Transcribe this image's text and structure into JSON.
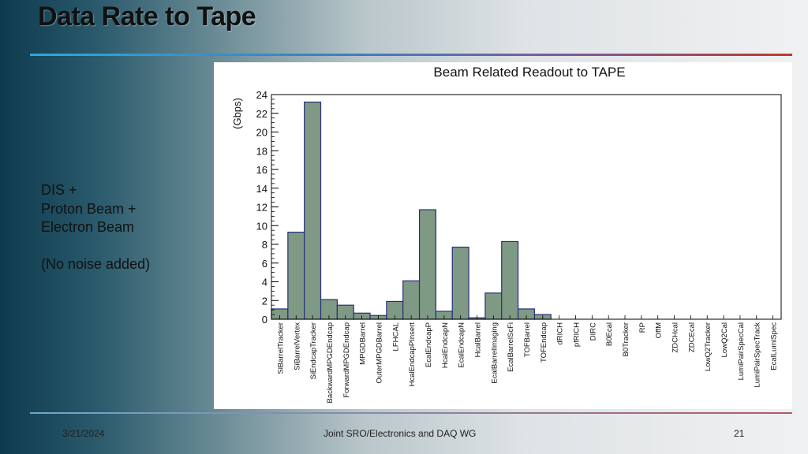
{
  "slide": {
    "title": "Data Rate to Tape",
    "side_lines": [
      "DIS +",
      "Proton Beam +",
      "Electron Beam"
    ],
    "side_note": "(No noise added)",
    "footer_date": "3/21/2024",
    "footer_center": "Joint SRO/Electronics and DAQ WG",
    "page_number": "21"
  },
  "chart_data": {
    "type": "bar",
    "title": "Beam Related Readout to TAPE",
    "ylabel": "(Gbps)",
    "xlabel": "",
    "ylim": [
      0,
      24
    ],
    "yticks": [
      0,
      2,
      4,
      6,
      8,
      10,
      12,
      14,
      16,
      18,
      20,
      22,
      24
    ],
    "grid": false,
    "bar_color": "#7f9a84",
    "edge_color": "#2b2f7a",
    "categories": [
      "SiBarrelTracker",
      "SiBarrelVertex",
      "SiEndcapTracker",
      "BackwardMPGDEndcap",
      "ForwardMPGDEndcap",
      "MPGDBarrel",
      "OuterMPGDBarrel",
      "LFHCAL",
      "HcalEndcapPInsert",
      "EcalEndcapP",
      "HcalEndcapN",
      "EcalEndcapN",
      "HcalBarrel",
      "EcalBarrelImaging",
      "EcalBarrelScFi",
      "TOFBarrel",
      "TOFEndcap",
      "dRICH",
      "pfRICH",
      "DIRC",
      "B0Ecal",
      "B0Tracker",
      "RP",
      "OffM",
      "ZDCHcal",
      "ZDCEcal",
      "LowQ2Tracker",
      "LowQ2Cal",
      "LumiPairSpecCal",
      "LumiPairSpecTrack",
      "EcalLumiSpec"
    ],
    "values": [
      1.1,
      9.3,
      23.2,
      2.1,
      1.5,
      0.65,
      0.4,
      1.9,
      4.1,
      11.7,
      0.85,
      7.7,
      0.15,
      2.8,
      8.3,
      1.1,
      0.5,
      0,
      0,
      0,
      0,
      0,
      0,
      0,
      0,
      0,
      0,
      0,
      0,
      0,
      0
    ]
  }
}
